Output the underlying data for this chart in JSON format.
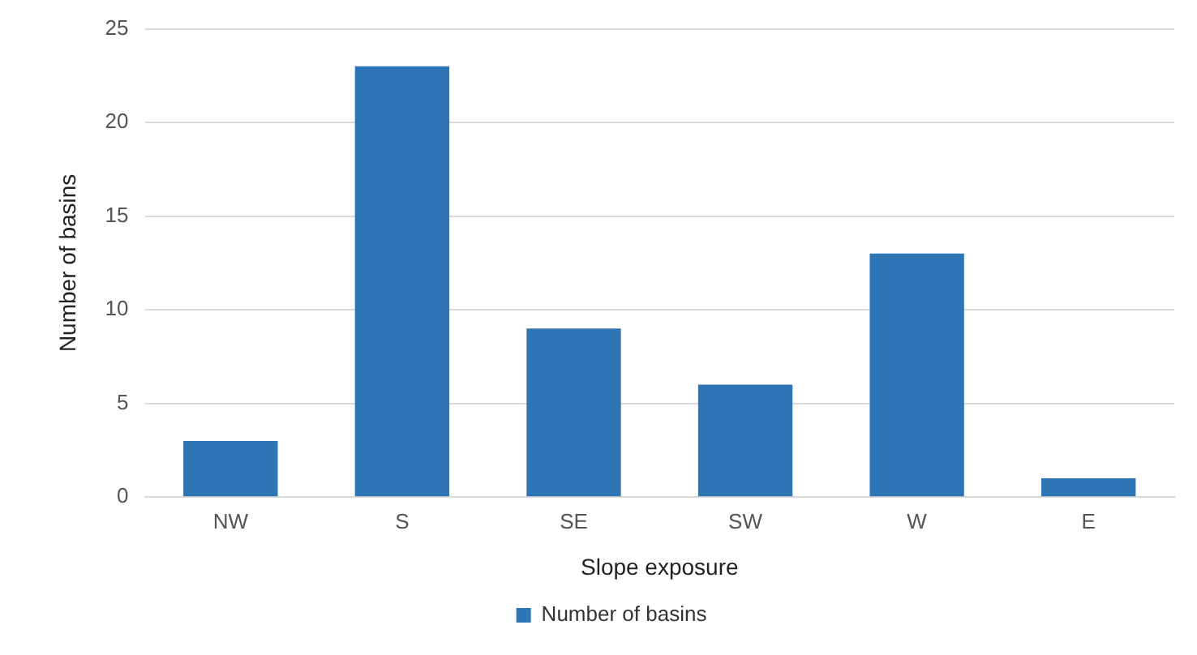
{
  "chart_data": {
    "type": "bar",
    "xlabel": "Slope exposure",
    "ylabel": "Number of basins",
    "categories": [
      "NW",
      "S",
      "SE",
      "SW",
      "W",
      "E"
    ],
    "series": [
      {
        "name": "Number of basins",
        "color": "#2e75b6",
        "values": [
          3,
          23,
          9,
          6,
          13,
          1
        ]
      }
    ],
    "ylim": [
      0,
      25
    ],
    "yticks": [
      0,
      5,
      10,
      15,
      20,
      25
    ],
    "grid": "y",
    "legend": "bottom"
  }
}
